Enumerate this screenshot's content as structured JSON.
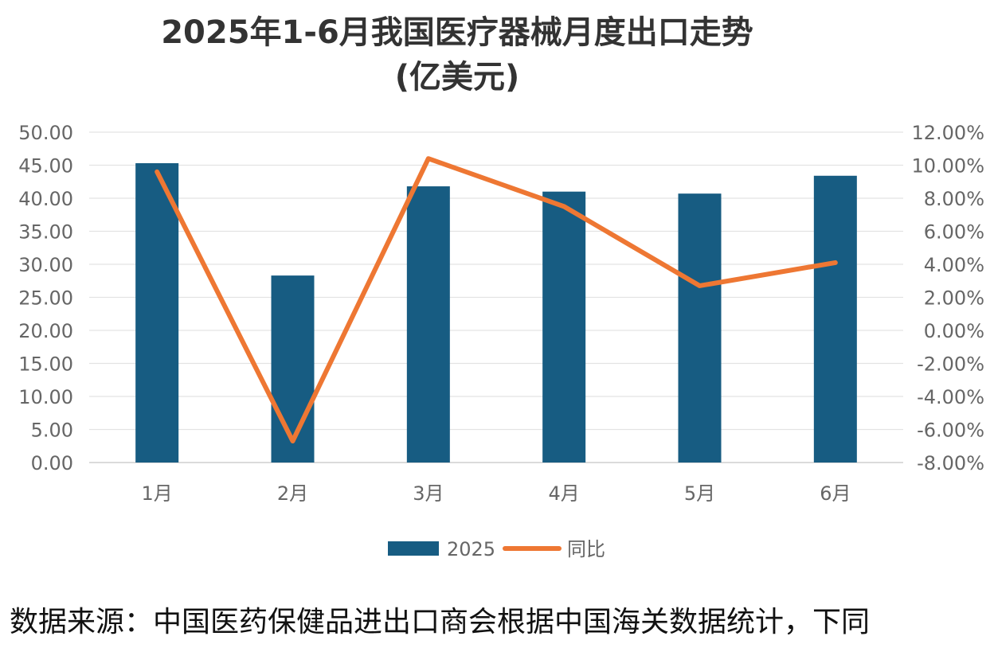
{
  "chart_data": {
    "type": "bar",
    "title": "2025年1-6月我国医疗器械月度出口走势",
    "subtitle": "(亿美元)",
    "categories": [
      "1月",
      "2月",
      "3月",
      "4月",
      "5月",
      "6月"
    ],
    "series": [
      {
        "name": "2025",
        "type": "bar",
        "axis": "left",
        "values": [
          45.3,
          28.3,
          41.8,
          41.0,
          40.7,
          43.4
        ],
        "color": "#175c82"
      },
      {
        "name": "同比",
        "type": "line",
        "axis": "right",
        "values": [
          9.6,
          -6.7,
          10.4,
          7.5,
          2.7,
          4.1
        ],
        "color": "#ee7733"
      }
    ],
    "y_left": {
      "min": 0,
      "max": 50,
      "step": 5,
      "tick_labels": [
        "0.00",
        "5.00",
        "10.00",
        "15.00",
        "20.00",
        "25.00",
        "30.00",
        "35.00",
        "40.00",
        "45.00",
        "50.00"
      ]
    },
    "y_right": {
      "min": -8,
      "max": 12,
      "step": 2,
      "tick_labels": [
        "-8.00%",
        "-6.00%",
        "-4.00%",
        "-2.00%",
        "0.00%",
        "2.00%",
        "4.00%",
        "6.00%",
        "8.00%",
        "10.00%",
        "12.00%"
      ]
    },
    "grid": true,
    "legend_position": "bottom"
  },
  "source_note": "数据来源：中国医药保健品进出口商会根据中国海关数据统计，下同"
}
